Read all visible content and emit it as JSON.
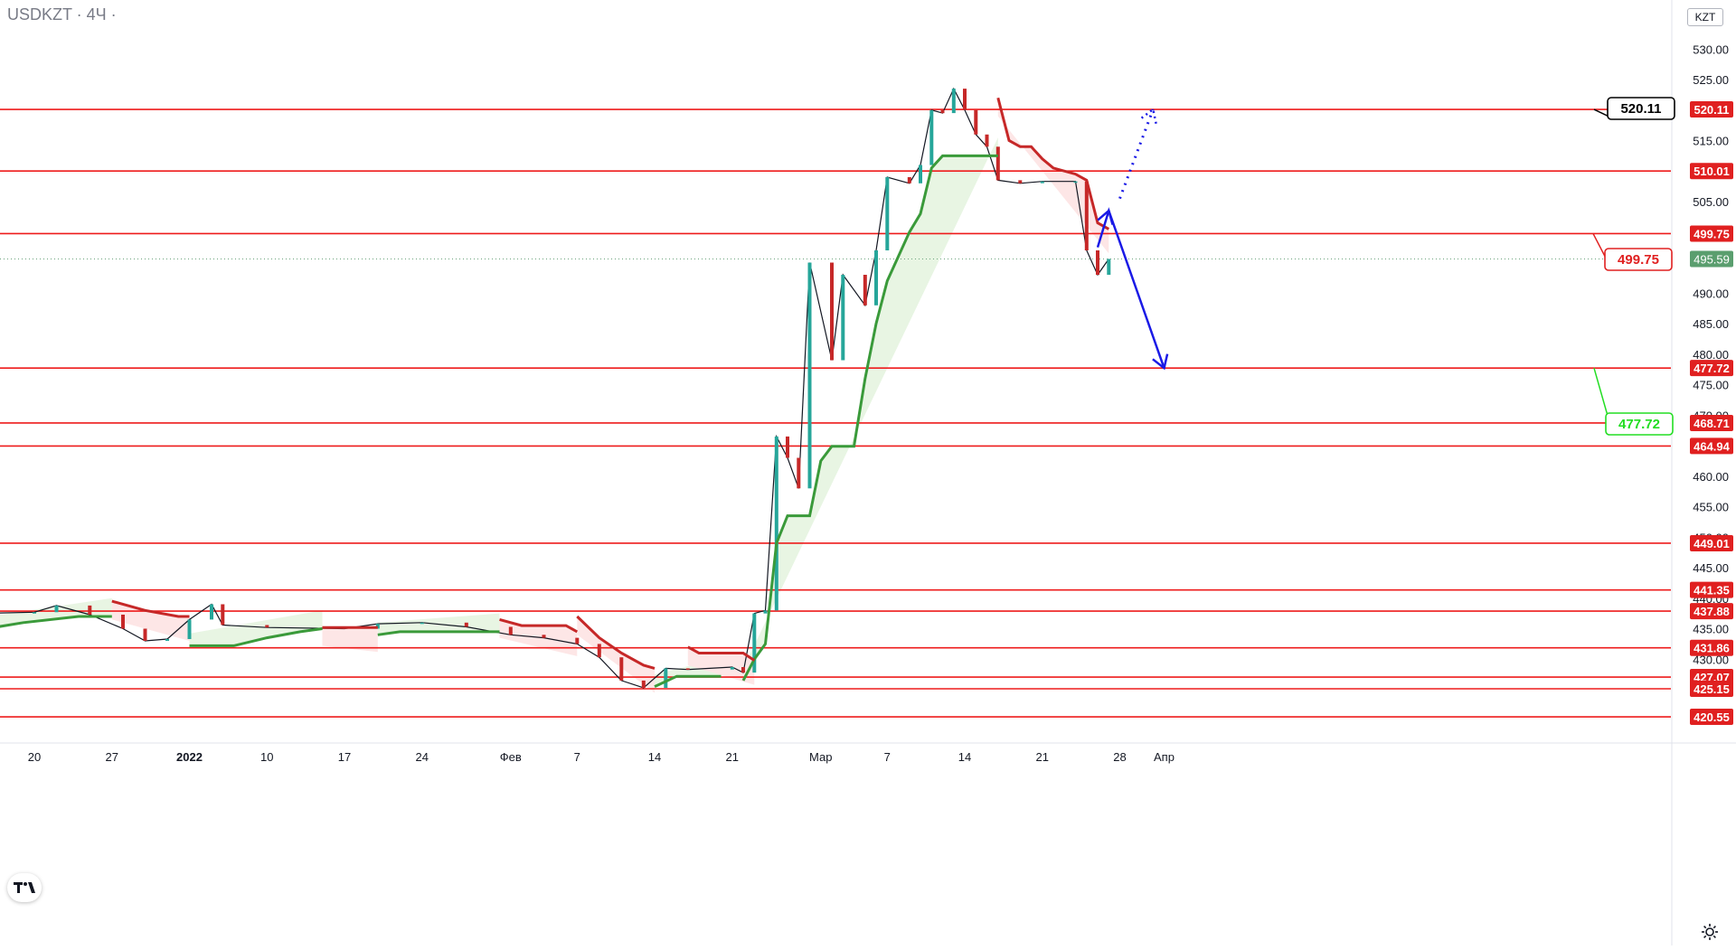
{
  "header": {
    "symbol_title": "USDKZT · 4Ч ·",
    "currency_button": "KZT"
  },
  "colors": {
    "level_line": "#ee1b1b",
    "up_candle": "#26a69a",
    "down_candle": "#c62828",
    "supertrend_up": "#3a9a3a",
    "supertrend_down": "#c62828",
    "up_fill": "#e8f5e3",
    "down_fill": "#fde6e6",
    "arrow": "#1a1ae6",
    "price_tag_bg": "#e02020",
    "current_price_bg": "#5a9e6e",
    "target_green": "#22dd22",
    "target_black": "#000000"
  },
  "chart_data": {
    "type": "candlestick",
    "symbol": "USDKZT",
    "interval": "4Ч",
    "currency": "KZT",
    "y_axis": {
      "ylim": [
        418,
        534
      ],
      "ticks": [
        "420.00",
        "425.00",
        "430.00",
        "435.00",
        "440.00",
        "445.00",
        "450.00",
        "455.00",
        "460.00",
        "465.00",
        "470.00",
        "475.00",
        "480.00",
        "485.00",
        "490.00",
        "495.00",
        "500.00",
        "505.00",
        "510.00",
        "515.00",
        "520.00",
        "525.00",
        "530.00"
      ]
    },
    "x_axis": {
      "labels": [
        "20",
        "27",
        "2022",
        "10",
        "17",
        "24",
        "Фев",
        "7",
        "14",
        "21",
        "Мар",
        "7",
        "14",
        "21",
        "28",
        "Апр"
      ],
      "label_dates": [
        "2021-12-20",
        "2021-12-27",
        "2022-01-03",
        "2022-01-10",
        "2022-01-17",
        "2022-01-24",
        "2022-02-01",
        "2022-02-07",
        "2022-02-14",
        "2022-02-21",
        "2022-03-01",
        "2022-03-07",
        "2022-03-14",
        "2022-03-21",
        "2022-03-28",
        "2022-04-01"
      ]
    },
    "price_levels": [
      520.11,
      510.01,
      499.75,
      477.72,
      468.71,
      464.94,
      449.01,
      441.35,
      437.88,
      431.86,
      427.07,
      425.15,
      420.55
    ],
    "price_level_labels": [
      "520.11",
      "510.01",
      "499.75",
      "477.72",
      "468.71",
      "464.94",
      "449.01",
      "441.35",
      "437.88",
      "431.86",
      "427.07",
      "425.15",
      "420.55"
    ],
    "current_price": 495.59,
    "current_price_label": "495.59",
    "target_labels": [
      {
        "text": "520.11",
        "value": 520.11,
        "style": "black"
      },
      {
        "text": "499.75",
        "value": 499.75,
        "style": "red"
      },
      {
        "text": "477.72",
        "value": 477.72,
        "style": "green"
      }
    ],
    "projection": [
      {
        "date": "2022-03-26",
        "value": 497.5
      },
      {
        "date": "2022-03-27",
        "value": 503.5
      },
      {
        "date": "2022-04-01",
        "value": 477.72
      }
    ],
    "projection_dotted": [
      {
        "date": "2022-03-28",
        "value": 505.5
      },
      {
        "date": "2022-03-31",
        "value": 520.11
      }
    ],
    "price_path": [
      {
        "date": "2021-12-15",
        "value": 437.5
      },
      {
        "date": "2021-12-20",
        "value": 437.7
      },
      {
        "date": "2021-12-22",
        "value": 438.8
      },
      {
        "date": "2021-12-25",
        "value": 437.3
      },
      {
        "date": "2021-12-28",
        "value": 435.0
      },
      {
        "date": "2021-12-30",
        "value": 433.0
      },
      {
        "date": "2022-01-01",
        "value": 433.3
      },
      {
        "date": "2022-01-03",
        "value": 436.5
      },
      {
        "date": "2022-01-05",
        "value": 439.0
      },
      {
        "date": "2022-01-06",
        "value": 435.6
      },
      {
        "date": "2022-01-10",
        "value": 435.2
      },
      {
        "date": "2022-01-17",
        "value": 435.0
      },
      {
        "date": "2022-01-20",
        "value": 435.8
      },
      {
        "date": "2022-01-24",
        "value": 436.0
      },
      {
        "date": "2022-01-28",
        "value": 435.3
      },
      {
        "date": "2022-02-01",
        "value": 434.0
      },
      {
        "date": "2022-02-04",
        "value": 433.5
      },
      {
        "date": "2022-02-07",
        "value": 432.5
      },
      {
        "date": "2022-02-09",
        "value": 430.3
      },
      {
        "date": "2022-02-11",
        "value": 426.5
      },
      {
        "date": "2022-02-13",
        "value": 425.3
      },
      {
        "date": "2022-02-15",
        "value": 428.5
      },
      {
        "date": "2022-02-17",
        "value": 428.3
      },
      {
        "date": "2022-02-21",
        "value": 428.7
      },
      {
        "date": "2022-02-22",
        "value": 427.8
      },
      {
        "date": "2022-02-23",
        "value": 437.5
      },
      {
        "date": "2022-02-24",
        "value": 438.0
      },
      {
        "date": "2022-02-25",
        "value": 466.5
      },
      {
        "date": "2022-02-26",
        "value": 463.0
      },
      {
        "date": "2022-02-27",
        "value": 458.0
      },
      {
        "date": "2022-02-28",
        "value": 495.0
      },
      {
        "date": "2022-03-02",
        "value": 479.0
      },
      {
        "date": "2022-03-03",
        "value": 493.0
      },
      {
        "date": "2022-03-05",
        "value": 488.0
      },
      {
        "date": "2022-03-06",
        "value": 497.0
      },
      {
        "date": "2022-03-07",
        "value": 509.0
      },
      {
        "date": "2022-03-09",
        "value": 508.0
      },
      {
        "date": "2022-03-10",
        "value": 511.0
      },
      {
        "date": "2022-03-11",
        "value": 520.0
      },
      {
        "date": "2022-03-12",
        "value": 519.5
      },
      {
        "date": "2022-03-13",
        "value": 523.5
      },
      {
        "date": "2022-03-14",
        "value": 520.0
      },
      {
        "date": "2022-03-15",
        "value": 516.0
      },
      {
        "date": "2022-03-16",
        "value": 514.0
      },
      {
        "date": "2022-03-17",
        "value": 508.5
      },
      {
        "date": "2022-03-19",
        "value": 508.0
      },
      {
        "date": "2022-03-21",
        "value": 508.3
      },
      {
        "date": "2022-03-24",
        "value": 508.3
      },
      {
        "date": "2022-03-25",
        "value": 497.0
      },
      {
        "date": "2022-03-26",
        "value": 493.0
      },
      {
        "date": "2022-03-27",
        "value": 495.59
      }
    ],
    "supertrend_up_segments": [
      [
        {
          "date": "2021-12-14",
          "value": 434.5
        },
        {
          "date": "2021-12-19",
          "value": 436.0
        },
        {
          "date": "2021-12-24",
          "value": 437.0
        },
        {
          "date": "2021-12-27",
          "value": 437.0
        }
      ],
      [
        {
          "date": "2022-01-03",
          "value": 432.2
        },
        {
          "date": "2022-01-07",
          "value": 432.2
        },
        {
          "date": "2022-01-10",
          "value": 433.5
        },
        {
          "date": "2022-01-13",
          "value": 434.5
        },
        {
          "date": "2022-01-15",
          "value": 435.0
        }
      ],
      [
        {
          "date": "2022-01-20",
          "value": 434.0
        },
        {
          "date": "2022-01-22",
          "value": 434.5
        },
        {
          "date": "2022-01-31",
          "value": 434.5
        }
      ],
      [
        {
          "date": "2022-02-14",
          "value": 425.5
        },
        {
          "date": "2022-02-16",
          "value": 427.2
        },
        {
          "date": "2022-02-20",
          "value": 427.2
        }
      ],
      [
        {
          "date": "2022-02-22",
          "value": 426.5
        },
        {
          "date": "2022-02-23",
          "value": 430.0
        },
        {
          "date": "2022-02-24",
          "value": 432.5
        },
        {
          "date": "2022-02-25",
          "value": 449.0
        },
        {
          "date": "2022-02-26",
          "value": 453.5
        },
        {
          "date": "2022-02-28",
          "value": 453.5
        },
        {
          "date": "2022-03-01",
          "value": 462.5
        },
        {
          "date": "2022-03-02",
          "value": 464.9
        },
        {
          "date": "2022-03-04",
          "value": 464.9
        },
        {
          "date": "2022-03-05",
          "value": 476.0
        },
        {
          "date": "2022-03-06",
          "value": 485.0
        },
        {
          "date": "2022-03-07",
          "value": 492.0
        },
        {
          "date": "2022-03-09",
          "value": 500.0
        },
        {
          "date": "2022-03-10",
          "value": 503.0
        },
        {
          "date": "2022-03-11",
          "value": 510.5
        },
        {
          "date": "2022-03-12",
          "value": 512.5
        },
        {
          "date": "2022-03-17",
          "value": 512.5
        }
      ]
    ],
    "supertrend_down_segments": [
      [
        {
          "date": "2021-12-27",
          "value": 439.5
        },
        {
          "date": "2021-12-30",
          "value": 438.0
        },
        {
          "date": "2022-01-02",
          "value": 437.0
        },
        {
          "date": "2022-01-03",
          "value": 437.0
        }
      ],
      [
        {
          "date": "2022-01-15",
          "value": 435.2
        },
        {
          "date": "2022-01-20",
          "value": 435.2
        }
      ],
      [
        {
          "date": "2022-01-31",
          "value": 436.5
        },
        {
          "date": "2022-02-02",
          "value": 435.5
        },
        {
          "date": "2022-02-06",
          "value": 435.5
        },
        {
          "date": "2022-02-07",
          "value": 434.5
        }
      ],
      [
        {
          "date": "2022-02-07",
          "value": 437.0
        },
        {
          "date": "2022-02-09",
          "value": 433.5
        },
        {
          "date": "2022-02-11",
          "value": 431.0
        },
        {
          "date": "2022-02-13",
          "value": 429.0
        },
        {
          "date": "2022-02-14",
          "value": 428.5
        }
      ],
      [
        {
          "date": "2022-02-17",
          "value": 432.0
        },
        {
          "date": "2022-02-18",
          "value": 431.0
        },
        {
          "date": "2022-02-22",
          "value": 431.0
        },
        {
          "date": "2022-02-23",
          "value": 429.8
        }
      ],
      [
        {
          "date": "2022-03-17",
          "value": 522.0
        },
        {
          "date": "2022-03-18",
          "value": 515.0
        },
        {
          "date": "2022-03-19",
          "value": 514.0
        },
        {
          "date": "2022-03-20",
          "value": 514.0
        },
        {
          "date": "2022-03-21",
          "value": 512.0
        },
        {
          "date": "2022-03-22",
          "value": 510.5
        },
        {
          "date": "2022-03-24",
          "value": 509.5
        },
        {
          "date": "2022-03-25",
          "value": 508.5
        },
        {
          "date": "2022-03-26",
          "value": 501.5
        },
        {
          "date": "2022-03-27",
          "value": 500.5
        }
      ]
    ]
  }
}
